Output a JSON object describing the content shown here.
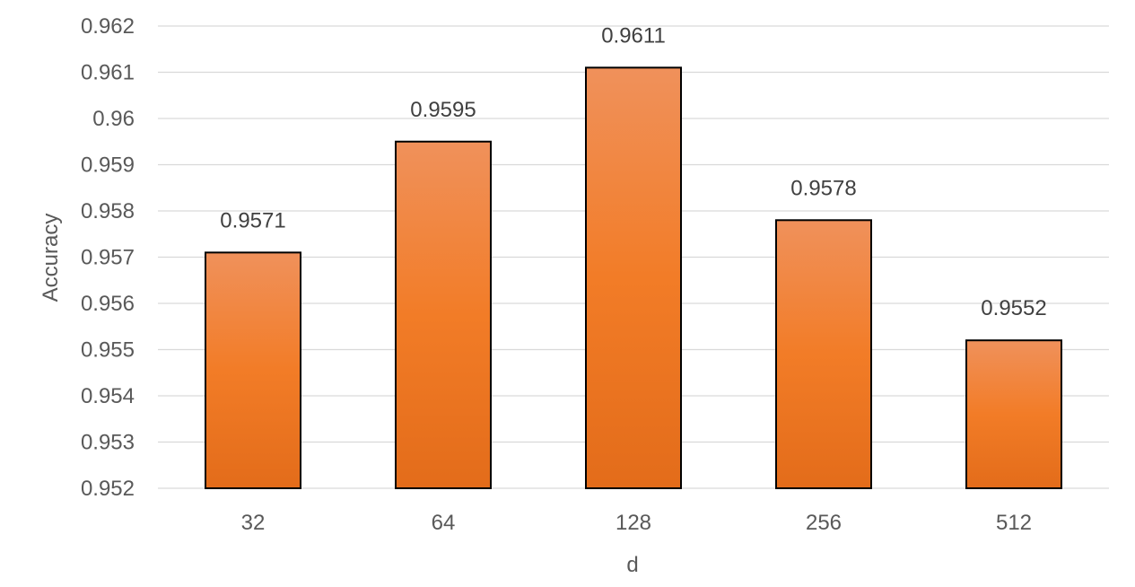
{
  "chart_data": {
    "type": "bar",
    "title": "",
    "xlabel": "d",
    "ylabel": "Accuracy",
    "categories": [
      "32",
      "64",
      "128",
      "256",
      "512"
    ],
    "values": [
      0.9571,
      0.9595,
      0.9611,
      0.9578,
      0.9552
    ],
    "data_labels": [
      "0.9571",
      "0.9595",
      "0.9611",
      "0.9578",
      "0.9552"
    ],
    "ylim": [
      0.952,
      0.962
    ],
    "yticks": [
      0.952,
      0.953,
      0.954,
      0.955,
      0.956,
      0.957,
      0.958,
      0.959,
      0.96,
      0.961,
      0.962
    ],
    "ytick_labels": [
      "0.952",
      "0.953",
      "0.954",
      "0.955",
      "0.956",
      "0.957",
      "0.958",
      "0.959",
      "0.96",
      "0.961",
      "0.962"
    ],
    "grid": true,
    "legend": "none",
    "colors": {
      "bar_top": "#f0915b",
      "bar_mid": "#f27c27",
      "bar_bottom": "#e36c1a",
      "bar_outline": "#000000",
      "grid": "#d9d9d9",
      "text": "#595959"
    }
  }
}
